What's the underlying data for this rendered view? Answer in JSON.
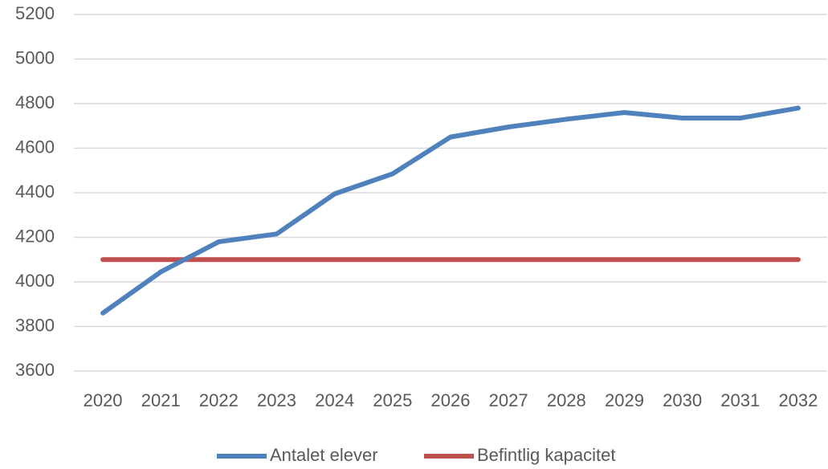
{
  "chart_data": {
    "type": "line",
    "categories": [
      "2020",
      "2021",
      "2022",
      "2023",
      "2024",
      "2025",
      "2026",
      "2027",
      "2028",
      "2029",
      "2030",
      "2031",
      "2032"
    ],
    "series": [
      {
        "name": "Antalet elever",
        "color": "#4f81bd",
        "values": [
          3860,
          4045,
          4180,
          4215,
          4395,
          4485,
          4650,
          4695,
          4730,
          4760,
          4735,
          4735,
          4780
        ]
      },
      {
        "name": "Befintlig kapacitet",
        "color": "#c0504d",
        "values": [
          4100,
          4100,
          4100,
          4100,
          4100,
          4100,
          4100,
          4100,
          4100,
          4100,
          4100,
          4100,
          4100
        ]
      }
    ],
    "ylim": [
      3600,
      5200
    ],
    "yticks": [
      3600,
      3800,
      4000,
      4200,
      4400,
      4600,
      4800,
      5000,
      5200
    ],
    "grid": true,
    "legend": "bottom"
  }
}
